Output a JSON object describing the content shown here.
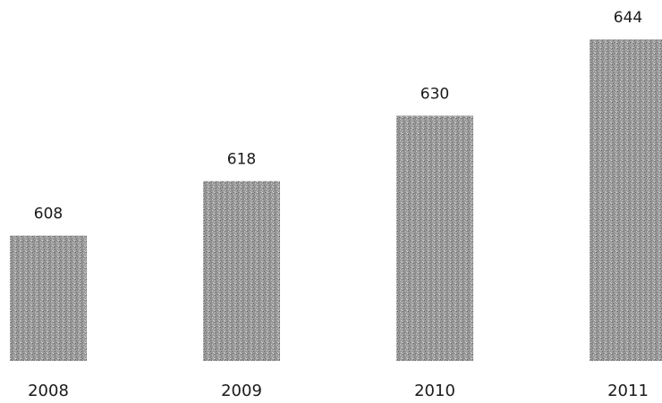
{
  "chart_data": {
    "type": "bar",
    "title": "",
    "xlabel": "",
    "ylabel": "",
    "categories": [
      "2008",
      "2009",
      "2010",
      "2011"
    ],
    "values": [
      608,
      618,
      630,
      644
    ],
    "data_labels": [
      "608",
      "618",
      "630",
      "644"
    ],
    "grid": false,
    "legend": "none",
    "bar_fill": "#8f8f8f"
  }
}
